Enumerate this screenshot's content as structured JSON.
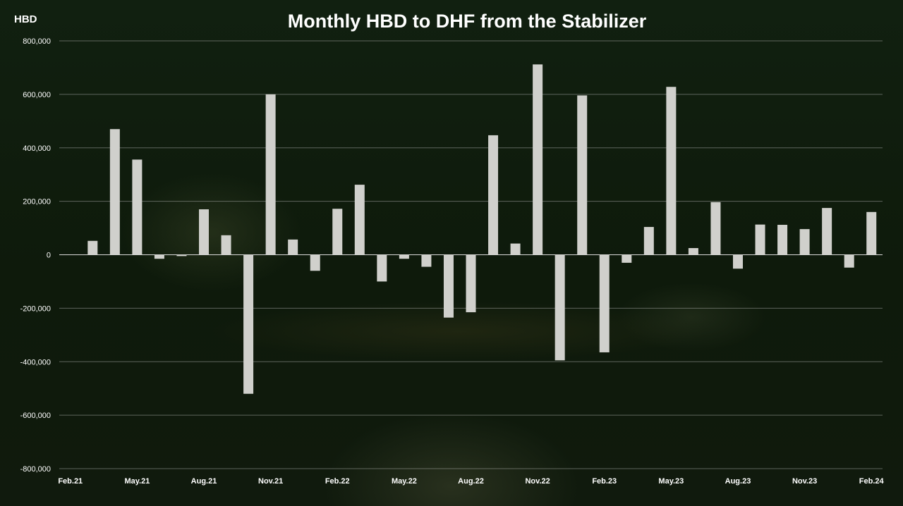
{
  "chart_data": {
    "type": "bar",
    "title": "Monthly HBD to DHF from the Stabilizer",
    "ylabel": "HBD",
    "xlabel": "",
    "ylim": [
      -800000,
      800000
    ],
    "yticks": [
      -800000,
      -600000,
      -400000,
      -200000,
      0,
      200000,
      400000,
      600000,
      800000
    ],
    "ytick_labels": [
      "-800,000",
      "-600,000",
      "-400,000",
      "-200,000",
      "0",
      "200,000",
      "400,000",
      "600,000",
      "800,000"
    ],
    "grid": true,
    "categories": [
      "Feb.21",
      "Mar.21",
      "Apr.21",
      "May.21",
      "Jun.21",
      "Jul.21",
      "Aug.21",
      "Sep.21",
      "Oct.21",
      "Nov.21",
      "Dec.21",
      "Jan.22",
      "Feb.22",
      "Mar.22",
      "Apr.22",
      "May.22",
      "Jun.22",
      "Jul.22",
      "Aug.22",
      "Sep.22",
      "Oct.22",
      "Nov.22",
      "Dec.22",
      "Jan.23",
      "Feb.23",
      "Mar.23",
      "Apr.23",
      "May.23",
      "Jun.23",
      "Jul.23",
      "Aug.23",
      "Sep.23",
      "Oct.23",
      "Nov.23",
      "Dec.23",
      "Jan.24",
      "Feb.24"
    ],
    "visible_tick_labels": [
      "Feb.21",
      "May.21",
      "Aug.21",
      "Nov.21",
      "Feb.22",
      "May.22",
      "Aug.22",
      "Nov.22",
      "Feb.23",
      "May.23",
      "Aug.23",
      "Nov.23",
      "Feb.24"
    ],
    "values": [
      0,
      52000,
      470000,
      356000,
      -15000,
      -5000,
      170000,
      73000,
      -520000,
      600000,
      57000,
      -60000,
      172000,
      262000,
      -100000,
      -15000,
      -45000,
      -235000,
      -215000,
      447000,
      42000,
      712000,
      -395000,
      596000,
      -365000,
      -30000,
      104000,
      628000,
      25000,
      197000,
      -52000,
      113000,
      112000,
      96000,
      175000,
      -48000,
      160000
    ]
  }
}
